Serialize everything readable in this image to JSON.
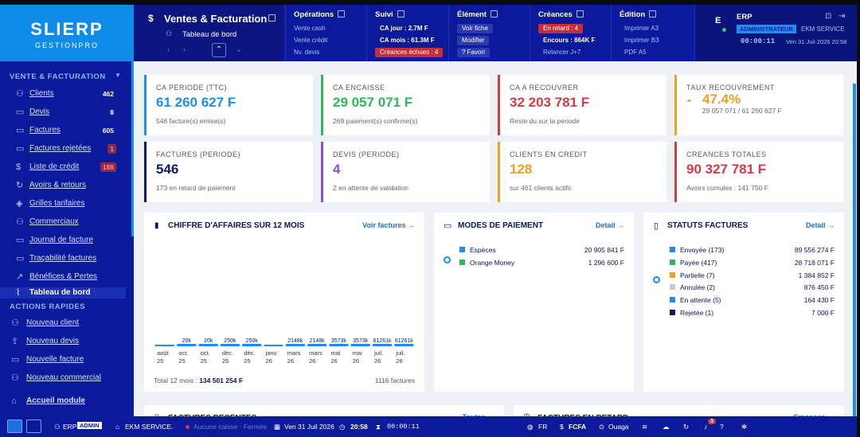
{
  "app": {
    "logo": "SLIERP",
    "subtitle": "GESTIONPRO"
  },
  "header": {
    "title": "Ventes & Facturation",
    "subtitle": "Tableau de bord"
  },
  "menus": [
    {
      "title": "Opérations",
      "items": [
        "Vente cash",
        "Vente crédit",
        "Nv. devis"
      ]
    },
    {
      "title": "Suivi",
      "items": [
        "CA jour : 2.7M F",
        "CA mois : 61.3M F",
        "Créances échues : 4"
      ]
    },
    {
      "title": "Élément",
      "items": [
        "Voir fiche",
        "Modifier",
        "? Favori"
      ]
    },
    {
      "title": "Créances",
      "items": [
        "En retard : 4",
        "Encours : 864K F",
        "Relancer J+7"
      ]
    },
    {
      "title": "Édition",
      "items": [
        "Imprimer A3",
        "Imprimer B3",
        "PDF A5"
      ]
    }
  ],
  "user": {
    "initial": "E",
    "name": "ERP",
    "role": "ADMINISTRATEUR",
    "service": "EKM SERVICE",
    "timer": "00:00:11",
    "datetime": "Ven 31 Juil 2026 20:58"
  },
  "sidebar": {
    "section": "VENTE & FACTURATION",
    "items": [
      {
        "label": "Clients",
        "badge": "462"
      },
      {
        "label": "Devis",
        "badge": "8"
      },
      {
        "label": "Factures",
        "badge": "605"
      },
      {
        "label": "Factures rejetées",
        "badge": "1"
      },
      {
        "label": "Liste de crédit",
        "badge": "188"
      },
      {
        "label": "Avoirs & retours",
        "badge": ""
      },
      {
        "label": "Grilles tarifaires",
        "badge": ""
      },
      {
        "label": "Commerciaux",
        "badge": ""
      },
      {
        "label": "Journal de facture",
        "badge": ""
      },
      {
        "label": "Traçabilité factures",
        "badge": ""
      },
      {
        "label": "Bénéfices & Pertes",
        "badge": ""
      },
      {
        "label": "Tableau de bord",
        "badge": ""
      }
    ],
    "quick_section": "ACTIONS RAPIDES",
    "quick": [
      {
        "label": "Nouveau client"
      },
      {
        "label": "Nouveau devis"
      },
      {
        "label": "Nouvelle facture"
      },
      {
        "label": "Nouveau commercial"
      },
      {
        "label": "Accueil module"
      }
    ]
  },
  "kpis": [
    {
      "label": "CA PERIODE (TTC)",
      "value": "61 260 627 F",
      "sub": "546 facture(s) emise(s)",
      "color": "#1b8ff0"
    },
    {
      "label": "CA ENCAISSE",
      "value": "29 057 071 F",
      "sub": "269 paiement(s) confirme(s)",
      "color": "#2fb85a"
    },
    {
      "label": "CA A RECOUVRER",
      "value": "32 203 781 F",
      "sub": "Reste du sur la periode",
      "color": "#d63a44"
    },
    {
      "label": "TAUX RECOUVREMENT",
      "value": "47.4%",
      "sub": "29 057 071 / 61 260 627 F",
      "color": "#f0a020"
    },
    {
      "label": "FACTURES (PERIODE)",
      "value": "546",
      "sub": "173 en retard de paiement",
      "color": "#0b1a6a"
    },
    {
      "label": "DEVIS (PERIODE)",
      "value": "4",
      "sub": "2 en attente de validation",
      "color": "#8a4fd8"
    },
    {
      "label": "CLIENTS EN CREDIT",
      "value": "128",
      "sub": "sur 461 clients actifs",
      "color": "#f0a020"
    },
    {
      "label": "CREANCES TOTALES",
      "value": "90 327 781 F",
      "sub": "Avoirs cumules : 141 750 F",
      "color": "#d63a44"
    }
  ],
  "ca_panel": {
    "title": "CHIFFRE D'AFFAIRES SUR 12 MOIS",
    "link": "Voir factures →",
    "total_label": "Total 12 mois :",
    "total": "134 501 254 F",
    "count": "1116 factures"
  },
  "chart_data": {
    "type": "bar",
    "categories": [
      "août 25",
      "oct. 25",
      "oct. 25",
      "déc. 25",
      "déc. 25",
      "janv. 26",
      "mars 26",
      "mars 26",
      "mai 26",
      "mai 26",
      "juil. 26",
      "juil. 26"
    ],
    "data_labels": [
      "",
      "20k",
      "20k",
      "250k",
      "250k",
      "",
      "2148k",
      "2148k",
      "3573k",
      "3573k",
      "61261k",
      "61261k"
    ],
    "values": [
      0,
      20,
      20,
      250,
      250,
      0,
      2148,
      2148,
      3573,
      3573,
      61261,
      61261
    ]
  },
  "paiement": {
    "title": "MODES DE PAIEMENT",
    "link": "Detail →",
    "rows": [
      {
        "label": "Espèces",
        "value": "20 905 841 F",
        "color": "#1b8ff0"
      },
      {
        "label": "Orange Money",
        "value": "1 296 600 F",
        "color": "#2fb85a"
      }
    ]
  },
  "statuts": {
    "title": "STATUTS FACTURES",
    "link": "Detail →",
    "rows": [
      {
        "label": "Envoyée (173)",
        "value": "89 556 274 F",
        "color": "#1b8ff0"
      },
      {
        "label": "Payée (417)",
        "value": "28 718 071 F",
        "color": "#2fb85a"
      },
      {
        "label": "Partielle (7)",
        "value": "1 384 852 F",
        "color": "#f0a020"
      },
      {
        "label": "Annulée (2)",
        "value": "876 450 F",
        "color": "#c8cbd6"
      },
      {
        "label": "En attente (5)",
        "value": "164 430 F",
        "color": "#1b8ff0"
      },
      {
        "label": "Rejetée (1)",
        "value": "7 000 F",
        "color": "#0b1a6a"
      }
    ]
  },
  "bottom": {
    "recent": "FACTURES RECENTES",
    "recent_link": "Toutes →",
    "late": "FACTURES EN RETARD",
    "late_link": "Creances →"
  },
  "status": {
    "user": "ERP",
    "role": "ADMIN",
    "service": "EKM SERVICE",
    "caisse": "Aucune caisse · Fermée",
    "date": "Ven 31 Juil 2026",
    "time": "20:58",
    "timer": "00:00:11",
    "lang": "FR",
    "currency": "FCFA",
    "city": "Ouaga",
    "notif": "3"
  }
}
